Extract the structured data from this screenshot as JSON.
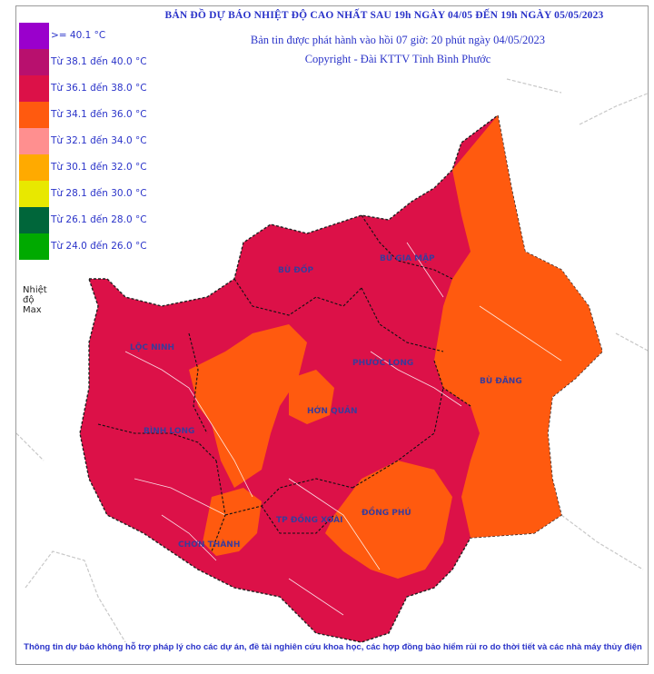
{
  "header": {
    "title": "BẢN ĐỒ DỰ BÁO NHIỆT ĐỘ CAO NHẤT SAU 19h NGÀY 04/05 ĐẾN 19h NGÀY 05/05/2023",
    "issued": "Bản tin được phát hành vào hồi 07 giờ: 20 phút ngày 04/05/2023",
    "copyright": "Copyright - Đài KTTV Tỉnh Bình Phước"
  },
  "legend": {
    "caption": "Nhiệt độ Max",
    "items": [
      {
        "label": ">= 40.1 °C",
        "color": "#9a00cc"
      },
      {
        "label": "Từ 38.1 đến 40.0 °C",
        "color": "#b8106e"
      },
      {
        "label": "Từ 36.1 đến 38.0 °C",
        "color": "#dc1148"
      },
      {
        "label": "Từ 34.1 đến 36.0 °C",
        "color": "#ff5a0f"
      },
      {
        "label": "Từ 32.1 đến 34.0 °C",
        "color": "#ff8f8f"
      },
      {
        "label": "Từ 30.1 đến 32.0 °C",
        "color": "#ffaa00"
      },
      {
        "label": "Từ 28.1 đến 30.0 °C",
        "color": "#e8e800"
      },
      {
        "label": "Từ 26.1 đến 28.0 °C",
        "color": "#00663a"
      },
      {
        "label": "Từ 24.0 đến 26.0 °C",
        "color": "#00aa00"
      }
    ]
  },
  "districts": {
    "bu_dop": "BÙ ĐỐP",
    "bu_gia_map": "BÙ GIA MẬP",
    "loc_ninh": "LỘC NINH",
    "phuoc_long": "PHƯỚC LONG",
    "bu_dang": "BÙ ĐĂNG",
    "hon_quan": "HỚN QUẢN",
    "binh_long": "BÌNH LONG",
    "chon_thanh": "CHƠN THÀNH",
    "dong_phu": "ĐỒNG PHÚ",
    "dong_xoai": "TP ĐỒNG XOÀI"
  },
  "footer": {
    "disclaimer": "Thông tin dự báo không hỗ trợ pháp lý cho các dự án, đề tài nghiên cứu khoa học, các hợp đồng bảo hiểm rủi ro do thời tiết và các nhà máy thủy điện"
  }
}
